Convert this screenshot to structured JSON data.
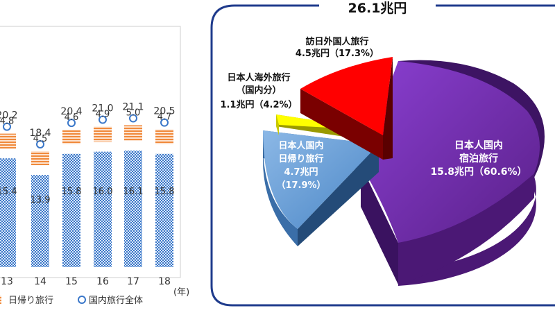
{
  "chart_data": [
    {
      "type": "bar",
      "categories": [
        "13",
        "14",
        "15",
        "16",
        "17",
        "18"
      ],
      "x_unit": "(年)",
      "series": [
        {
          "name": "",
          "values": [
            15.4,
            13.9,
            15.8,
            16.0,
            16.1,
            15.8
          ],
          "color": "#3a77c9"
        },
        {
          "name": "日帰り旅行",
          "values": [
            4.8,
            4.5,
            4.6,
            4.9,
            5.0,
            4.7
          ],
          "color": "#f08a3c"
        },
        {
          "name": "国内旅行全体",
          "values": [
            20.2,
            18.4,
            20.4,
            21.0,
            21.1,
            20.5
          ],
          "color": "#3a77c9",
          "marker": "circle"
        }
      ],
      "legend": [
        {
          "label": "日帰り旅行",
          "symbol": "hatched-square",
          "color": "#f08a3c"
        },
        {
          "label": "国内旅行全体",
          "symbol": "circle",
          "color": "#3a77c9"
        }
      ],
      "legend_position": "bottom",
      "grid": false
    },
    {
      "type": "pie",
      "title": "26.1兆円",
      "slices": [
        {
          "label_lines": [
            "日本人国内",
            "宿泊旅行",
            "15.8兆円（60.6%）"
          ],
          "value": 15.8,
          "percent": 60.6,
          "color": "#7030a0",
          "exploded": false
        },
        {
          "label_lines": [
            "日本人国内",
            "日帰り旅行",
            "4.7兆円",
            "（17.9%）"
          ],
          "value": 4.7,
          "percent": 17.9,
          "color": "#5b9bd5",
          "exploded": true
        },
        {
          "label_lines": [
            "日本人海外旅行",
            "（国内分）",
            "1.1兆円（4.2%）"
          ],
          "value": 1.1,
          "percent": 4.2,
          "color": "#ffff00",
          "exploded": true
        },
        {
          "label_lines": [
            "訪日外国人旅行",
            "4.5兆円（17.3%）"
          ],
          "value": 4.5,
          "percent": 17.3,
          "color": "#ff0000",
          "exploded": true
        }
      ],
      "style": "3d-exploded"
    }
  ]
}
